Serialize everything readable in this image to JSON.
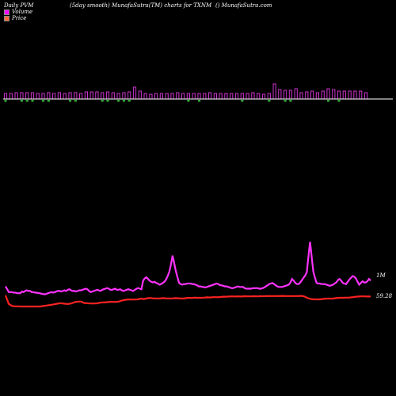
{
  "header": {
    "left": "Daily PVM",
    "center": "(5day smooth) MunafaSutra(TM) charts for TXNM",
    "right": "() MunafaSutra.com"
  },
  "legend": {
    "items": [
      {
        "label": "Volume",
        "color": "#ff00ff"
      },
      {
        "label": "Price",
        "color": "#ff6633"
      }
    ]
  },
  "colors": {
    "volume_up": "#cc33cc",
    "volume_down": "#33aa33",
    "volume_line": "#ff33ff",
    "price_line": "#ff2222"
  },
  "chart_data": {
    "type": "line",
    "volume_bars": {
      "heights": [
        7,
        7,
        8,
        8,
        8,
        8,
        7,
        7,
        8,
        7,
        8,
        7,
        8,
        8,
        7,
        9,
        9,
        9,
        8,
        9,
        8,
        7,
        8,
        9,
        15,
        10,
        7,
        6,
        7,
        7,
        7,
        7,
        8,
        7,
        7,
        7,
        7,
        7,
        8,
        7,
        7,
        7,
        7,
        7,
        7,
        7,
        8,
        7,
        6,
        7,
        19,
        12,
        11,
        11,
        13,
        8,
        9,
        10,
        8,
        10,
        13,
        12,
        10,
        10,
        10,
        10,
        10,
        8
      ],
      "down_marks": [
        0,
        3,
        4,
        5,
        7,
        8,
        12,
        13,
        18,
        19,
        21,
        22,
        23,
        34,
        36,
        44,
        49,
        52,
        53,
        60,
        62
      ]
    },
    "series": [
      {
        "name": "",
        "label_value": "1M",
        "values": [
          20,
          15,
          10,
          10,
          10,
          9,
          9,
          8,
          8,
          8,
          11,
          10,
          12,
          13,
          12,
          12,
          10,
          10,
          9,
          9,
          8,
          8,
          7,
          7,
          6,
          7,
          8,
          9,
          10,
          9,
          10,
          11,
          12,
          12,
          11,
          12,
          13,
          12,
          14,
          15,
          13,
          12,
          12,
          11,
          12,
          13,
          13,
          14,
          15,
          16,
          15,
          12,
          10,
          11,
          12,
          13,
          14,
          13,
          12,
          14,
          15,
          16,
          17,
          16,
          14,
          14,
          15,
          16,
          14,
          14,
          15,
          13,
          12,
          13,
          14,
          15,
          14,
          13,
          12,
          14,
          16,
          17,
          16,
          15,
          30,
          34,
          36,
          33,
          30,
          28,
          27,
          28,
          26,
          25,
          23,
          24,
          26,
          28,
          32,
          38,
          45,
          58,
          74,
          61,
          47,
          36,
          26,
          24,
          23,
          24,
          24,
          25,
          25,
          25,
          24,
          24,
          23,
          22,
          20,
          20,
          19,
          19,
          18,
          19,
          20,
          21,
          22,
          23,
          24,
          25,
          24,
          22,
          22,
          21,
          20,
          20,
          19,
          18,
          17,
          17,
          18,
          19,
          20,
          19,
          19,
          19,
          17,
          16,
          16,
          16,
          16,
          17,
          17,
          17,
          17,
          16,
          16,
          17,
          18,
          20,
          22,
          24,
          25,
          26,
          24,
          22,
          20,
          19,
          19,
          19,
          20,
          21,
          22,
          23,
          27,
          33,
          30,
          26,
          24,
          24,
          27,
          31,
          35,
          39,
          45,
          72,
          98,
          71,
          46,
          35,
          26,
          25,
          25,
          24,
          24,
          24,
          23,
          22,
          21,
          22,
          23,
          25,
          27,
          31,
          33,
          30,
          26,
          25,
          24,
          28,
          32,
          35,
          38,
          37,
          34,
          28,
          23,
          26,
          29,
          27,
          27,
          29,
          33,
          30
        ]
      },
      {
        "name": "",
        "label_value": "59.28",
        "values": [
          59.95,
          59.42,
          59.29,
          59.26,
          59.26,
          59.25,
          59.25,
          59.25,
          59.25,
          59.25,
          59.25,
          59.25,
          59.28,
          59.31,
          59.34,
          59.37,
          59.41,
          59.45,
          59.45,
          59.42,
          59.41,
          59.45,
          59.53,
          59.56,
          59.56,
          59.47,
          59.46,
          59.44,
          59.44,
          59.45,
          59.49,
          59.51,
          59.52,
          59.54,
          59.54,
          59.54,
          59.56,
          59.63,
          59.67,
          59.7,
          59.69,
          59.69,
          59.7,
          59.75,
          59.72,
          59.77,
          59.79,
          59.76,
          59.76,
          59.76,
          59.78,
          59.76,
          59.76,
          59.76,
          59.78,
          59.77,
          59.75,
          59.77,
          59.8,
          59.79,
          59.81,
          59.8,
          59.8,
          59.81,
          59.83,
          59.82,
          59.84,
          59.84,
          59.84,
          59.87,
          59.87,
          59.88,
          59.89,
          59.88,
          59.89,
          59.88,
          59.9,
          59.89,
          59.89,
          59.9,
          59.89,
          59.9,
          59.9,
          59.91,
          59.91,
          59.91,
          59.91,
          59.91,
          59.92,
          59.91,
          59.91,
          59.91,
          59.91,
          59.91,
          59.92,
          59.88,
          59.78,
          59.72,
          59.7,
          59.7,
          59.7,
          59.73,
          59.75,
          59.75,
          59.75,
          59.78,
          59.8,
          59.8,
          59.81,
          59.81,
          59.83,
          59.86,
          59.88,
          59.89,
          59.89,
          59.88,
          59.88
        ],
        "label_value_note": ""
      }
    ]
  }
}
